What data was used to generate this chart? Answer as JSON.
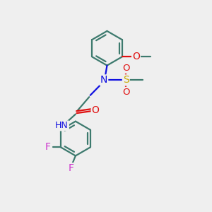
{
  "bg_color": "#efefef",
  "bond_color": "#3d7a6e",
  "bond_width": 1.6,
  "N_color": "#1010e0",
  "O_color": "#e01010",
  "F_color": "#cc33cc",
  "S_color": "#c8a800",
  "text_fontsize": 9.5,
  "figsize": [
    3.0,
    3.0
  ],
  "dpi": 100,
  "xlim": [
    0,
    10
  ],
  "ylim": [
    0,
    10
  ]
}
